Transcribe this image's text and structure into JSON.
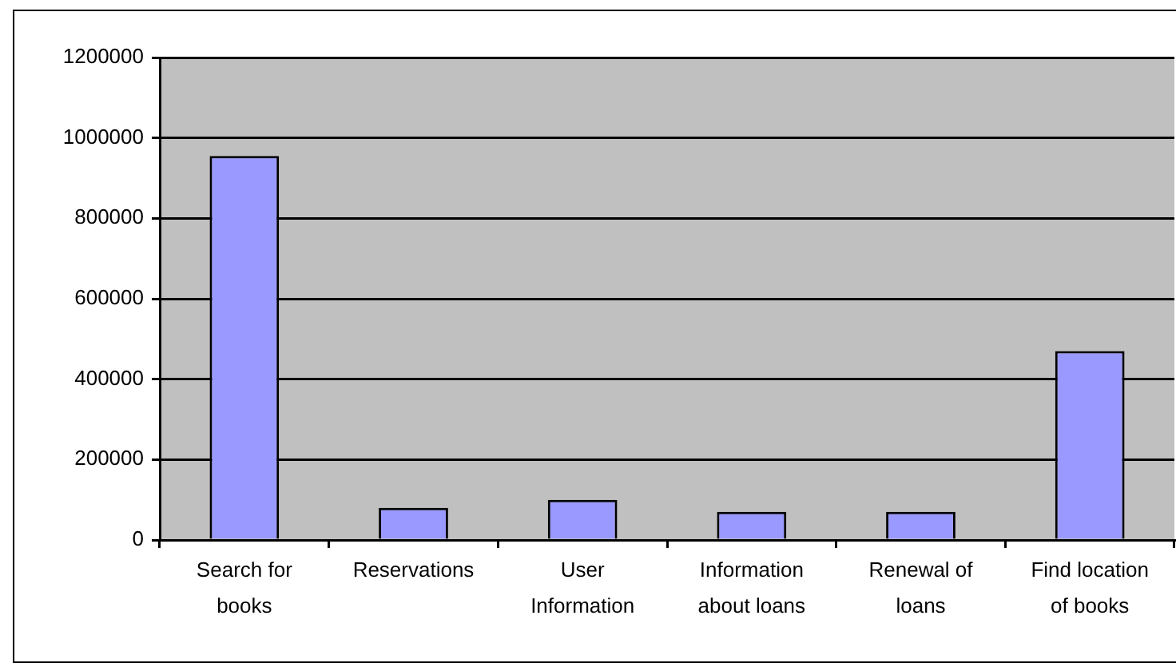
{
  "chart_data": {
    "type": "bar",
    "categories": [
      "Search for books",
      "Reservations",
      "User Information",
      "Information about loans",
      "Renewal of loans",
      "Find location of books"
    ],
    "values": [
      955000,
      80000,
      100000,
      70000,
      70000,
      470000
    ],
    "color": "#9999ff",
    "ylim": [
      0,
      1200000
    ],
    "yticks": [
      0,
      200000,
      400000,
      600000,
      800000,
      1000000,
      1200000
    ],
    "grid": "y"
  }
}
